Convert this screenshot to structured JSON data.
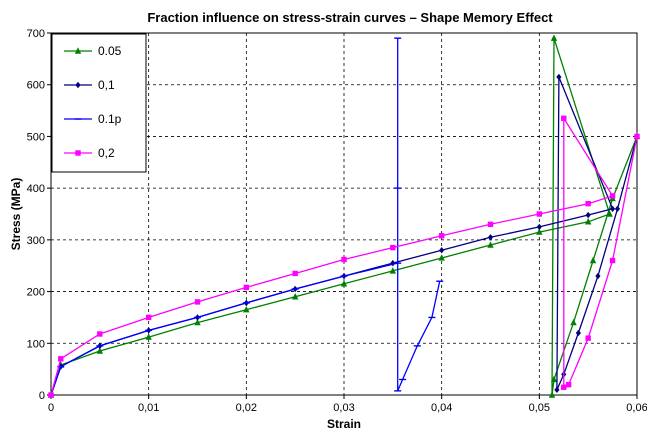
{
  "chart_data": {
    "type": "line",
    "title": "Fraction influence on stress-strain curves – Shape Memory Effect",
    "xlabel": "Strain",
    "ylabel": "Stress (MPa)",
    "xlim": [
      0,
      0.06
    ],
    "ylim": [
      0,
      700
    ],
    "xticks": [
      "0",
      "0,01",
      "0,02",
      "0,03",
      "0,04",
      "0,05",
      "0,06"
    ],
    "yticks": [
      "0",
      "100",
      "200",
      "300",
      "400",
      "500",
      "600",
      "700"
    ],
    "grid": true,
    "legend_position": "top-left",
    "series": [
      {
        "name": "0.05",
        "color": "#008000",
        "marker": "triangle",
        "x": [
          0,
          0.001,
          0.005,
          0.01,
          0.015,
          0.02,
          0.025,
          0.03,
          0.035,
          0.04,
          0.045,
          0.05,
          0.055,
          0.0572,
          0.0515,
          0.0513,
          0.0515,
          0.0535,
          0.0555,
          0.0575,
          0.06
        ],
        "y": [
          0,
          58,
          85,
          112,
          140,
          165,
          190,
          215,
          240,
          265,
          290,
          315,
          335,
          350,
          690,
          0,
          30,
          140,
          260,
          380,
          500
        ]
      },
      {
        "name": "0,1",
        "color": "#000080",
        "marker": "diamond",
        "x": [
          0,
          0.001,
          0.005,
          0.01,
          0.015,
          0.02,
          0.025,
          0.03,
          0.035,
          0.04,
          0.045,
          0.05,
          0.055,
          0.0575,
          0.052,
          0.0518,
          0.0525,
          0.054,
          0.056,
          0.058,
          0.06
        ],
        "y": [
          0,
          55,
          95,
          125,
          150,
          178,
          205,
          230,
          255,
          280,
          305,
          325,
          348,
          360,
          615,
          10,
          40,
          120,
          230,
          360,
          500
        ]
      },
      {
        "name": "0.1p",
        "color": "#0000ff",
        "marker": "dash",
        "x": [
          0,
          0.001,
          0.005,
          0.01,
          0.015,
          0.02,
          0.025,
          0.03,
          0.0355,
          0.0355,
          0.0355,
          0.0355,
          0.036,
          0.0375,
          0.039,
          0.0398
        ],
        "y": [
          0,
          55,
          95,
          125,
          150,
          178,
          205,
          230,
          255,
          690,
          400,
          8,
          30,
          95,
          150,
          220
        ]
      },
      {
        "name": "0,2",
        "color": "#ff00ff",
        "marker": "square",
        "x": [
          0,
          0.001,
          0.005,
          0.01,
          0.015,
          0.02,
          0.025,
          0.03,
          0.035,
          0.04,
          0.045,
          0.05,
          0.055,
          0.0575,
          0.0525,
          0.0525,
          0.053,
          0.055,
          0.0575,
          0.06
        ],
        "y": [
          0,
          70,
          118,
          150,
          180,
          208,
          235,
          262,
          285,
          308,
          330,
          350,
          370,
          385,
          535,
          15,
          20,
          110,
          260,
          500
        ]
      }
    ]
  }
}
